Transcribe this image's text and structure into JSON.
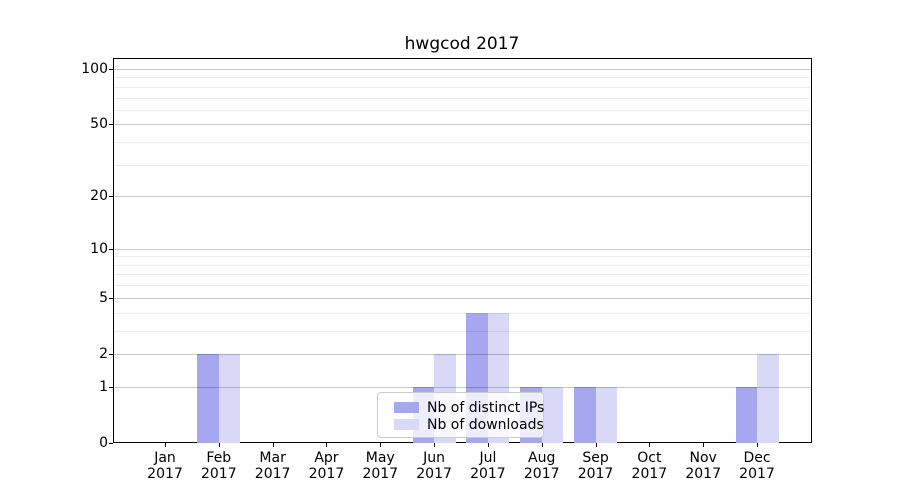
{
  "title": "hwgcod 2017",
  "colors": {
    "bar_distinct_ips": "#a7a7f0",
    "bar_downloads": "#d9d9f7",
    "axis": "#000000",
    "legend_border": "#cbcbcb"
  },
  "legend": {
    "items": [
      {
        "label": "Nb of distinct IPs",
        "color": "#a7a7f0"
      },
      {
        "label": "Nb of downloads",
        "color": "#d9d9f7"
      }
    ]
  },
  "chart_data": {
    "type": "bar",
    "title": "hwgcod 2017",
    "categories": [
      "Jan 2017",
      "Feb 2017",
      "Mar 2017",
      "Apr 2017",
      "May 2017",
      "Jun 2017",
      "Jul 2017",
      "Aug 2017",
      "Sep 2017",
      "Oct 2017",
      "Nov 2017",
      "Dec 2017"
    ],
    "series": [
      {
        "name": "Nb of distinct IPs",
        "color": "#a7a7f0",
        "values": [
          0,
          2,
          0,
          0,
          0,
          1,
          4,
          1,
          1,
          0,
          0,
          1
        ]
      },
      {
        "name": "Nb of downloads",
        "color": "#d9d9f7",
        "values": [
          0,
          2,
          0,
          0,
          0,
          2,
          4,
          1,
          1,
          0,
          0,
          2
        ]
      }
    ],
    "xlabel": "",
    "ylabel": "",
    "yscale": "log1p",
    "yticks": [
      0,
      1,
      2,
      5,
      10,
      20,
      50,
      100
    ],
    "minor_yticks": [
      3,
      4,
      6,
      7,
      8,
      9,
      30,
      40,
      60,
      70,
      80,
      90
    ],
    "ylim": [
      0,
      115
    ],
    "grid": "horizontal",
    "legend_position": "inside-bottom-center"
  }
}
